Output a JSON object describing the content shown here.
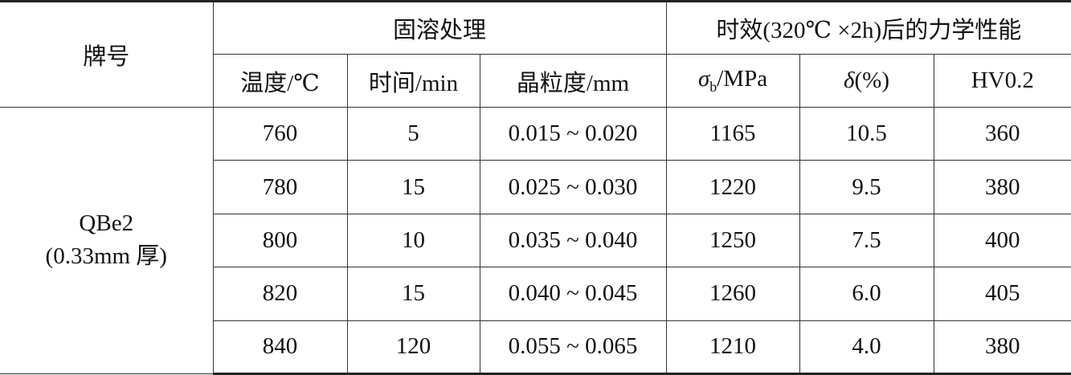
{
  "table": {
    "header": {
      "grade": "牌号",
      "solution_group": "固溶处理",
      "aging_group": "时效(320℃ ×2h)后的力学性能",
      "columns": [
        "温度/℃",
        "时间/min",
        "晶粒度/mm"
      ],
      "strength": {
        "symbol": "σ",
        "subscript": "b",
        "unit": "/MPa"
      },
      "elongation": {
        "symbol": "δ",
        "unit": "(%)"
      },
      "hardness": "HV0.2"
    },
    "grade": {
      "name": "QBe2",
      "note": "(0.33mm 厚)"
    },
    "rows": [
      [
        "760",
        "5",
        "0.015 ~ 0.020",
        "1165",
        "10.5",
        "360"
      ],
      [
        "780",
        "15",
        "0.025 ~ 0.030",
        "1220",
        "9.5",
        "380"
      ],
      [
        "800",
        "10",
        "0.035 ~ 0.040",
        "1250",
        "7.5",
        "400"
      ],
      [
        "820",
        "15",
        "0.040 ~ 0.045",
        "1260",
        "6.0",
        "405"
      ],
      [
        "840",
        "120",
        "0.055 ~ 0.065",
        "1210",
        "4.0",
        "380"
      ]
    ]
  }
}
